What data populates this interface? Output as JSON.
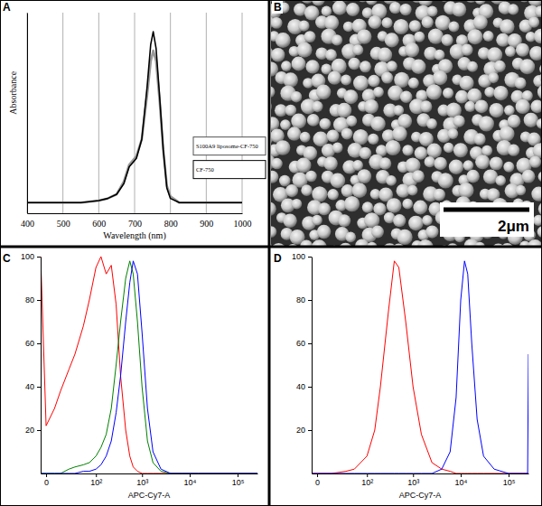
{
  "chart_data": [
    {
      "type": "line",
      "label": "A",
      "x_label": "Wavelength (nm)",
      "y_label": "Absorbance",
      "x": [
        400,
        450,
        500,
        550,
        600,
        625,
        650,
        670,
        685,
        695,
        705,
        720,
        735,
        745,
        752,
        760,
        770,
        780,
        790,
        800,
        825,
        850,
        900,
        950,
        1000
      ],
      "series": [
        {
          "name": "S100A9 liposome-CF-750",
          "color": "#999999",
          "values": [
            0.05,
            0.05,
            0.05,
            0.05,
            0.06,
            0.07,
            0.09,
            0.15,
            0.23,
            0.25,
            0.27,
            0.35,
            0.56,
            0.72,
            0.77,
            0.72,
            0.53,
            0.3,
            0.13,
            0.08,
            0.05,
            0.05,
            0.05,
            0.05,
            0.05
          ]
        },
        {
          "name": "CF-750",
          "color": "#000000",
          "values": [
            0.05,
            0.05,
            0.05,
            0.05,
            0.06,
            0.07,
            0.09,
            0.14,
            0.22,
            0.24,
            0.26,
            0.35,
            0.6,
            0.8,
            0.86,
            0.78,
            0.55,
            0.3,
            0.12,
            0.07,
            0.05,
            0.05,
            0.05,
            0.05,
            0.05
          ]
        }
      ],
      "xlim": [
        400,
        1000
      ],
      "xticks": [
        400,
        500,
        600,
        700,
        800,
        900,
        1000
      ],
      "ylim": [
        0,
        0.95
      ],
      "grid": true,
      "tick_labels": "x",
      "legend": "right"
    },
    {
      "type": "line",
      "label": "C",
      "x_label": "APC-Cy7-A",
      "log": "x",
      "x": [
        -3,
        0,
        5,
        10,
        20,
        30,
        50,
        70,
        100,
        130,
        170,
        220,
        280,
        350,
        450,
        550,
        650,
        800,
        1000,
        1300,
        1700,
        2500,
        4000,
        7000,
        15000,
        50000,
        260000
      ],
      "series": [
        {
          "color": "#ff0000",
          "values": [
            100,
            22,
            30,
            38,
            48,
            55,
            68,
            80,
            95,
            100,
            92,
            96,
            78,
            45,
            20,
            8,
            3,
            1,
            0,
            0,
            0,
            0,
            0,
            0,
            0,
            0,
            0
          ]
        },
        {
          "color": "#008000",
          "values": [
            0,
            0,
            0,
            0,
            2,
            3,
            4,
            5,
            8,
            12,
            18,
            30,
            50,
            70,
            90,
            98,
            92,
            70,
            40,
            15,
            5,
            1,
            0,
            0,
            0,
            0,
            0
          ]
        },
        {
          "color": "#0000ff",
          "values": [
            0,
            0,
            0,
            0,
            0,
            0,
            1,
            1,
            2,
            4,
            8,
            15,
            28,
            45,
            70,
            88,
            98,
            92,
            65,
            30,
            10,
            2,
            0,
            0,
            0,
            0,
            0
          ]
        }
      ],
      "xlim": [
        -3,
        260000
      ],
      "xticks": [
        0,
        {
          "value": 100,
          "label": "10²"
        },
        {
          "value": 1000,
          "label": "10³"
        },
        {
          "value": 10000,
          "label": "10⁴"
        },
        {
          "value": 100000,
          "label": "10⁵"
        }
      ],
      "ylim": [
        0,
        100
      ],
      "yticks": [
        20,
        40,
        60,
        80,
        100
      ]
    },
    {
      "type": "line",
      "label": "D",
      "x_label": "APC-Cy7-A",
      "log": "x",
      "x": [
        -3,
        0,
        10,
        30,
        50,
        100,
        150,
        200,
        300,
        400,
        500,
        700,
        1000,
        1500,
        2500,
        4000,
        6000,
        8000,
        10000,
        12000,
        14000,
        17000,
        22000,
        30000,
        50000,
        100000,
        200000,
        250000,
        260000
      ],
      "series": [
        {
          "color": "#ff0000",
          "values": [
            0,
            0,
            0,
            1,
            2,
            8,
            20,
            40,
            75,
            98,
            95,
            70,
            40,
            18,
            5,
            2,
            1,
            0,
            0,
            0,
            0,
            0,
            0,
            0,
            0,
            0,
            0,
            0,
            0
          ]
        },
        {
          "color": "#0000ff",
          "values": [
            0,
            0,
            0,
            0,
            0,
            0,
            0,
            0,
            0,
            0,
            0,
            0,
            0,
            0,
            0,
            2,
            10,
            35,
            80,
            98,
            92,
            60,
            25,
            8,
            2,
            0,
            0,
            0,
            55
          ]
        }
      ],
      "xlim": [
        -3,
        260000
      ],
      "xticks": [
        0,
        {
          "value": 100,
          "label": "10²"
        },
        {
          "value": 1000,
          "label": "10³"
        },
        {
          "value": 10000,
          "label": "10⁴"
        },
        {
          "value": 100000,
          "label": "10⁵"
        }
      ],
      "ylim": [
        0,
        100
      ],
      "yticks": [
        20,
        40,
        60,
        80,
        100
      ]
    }
  ],
  "image": {
    "label": "B",
    "scale_bar": "2μm"
  }
}
